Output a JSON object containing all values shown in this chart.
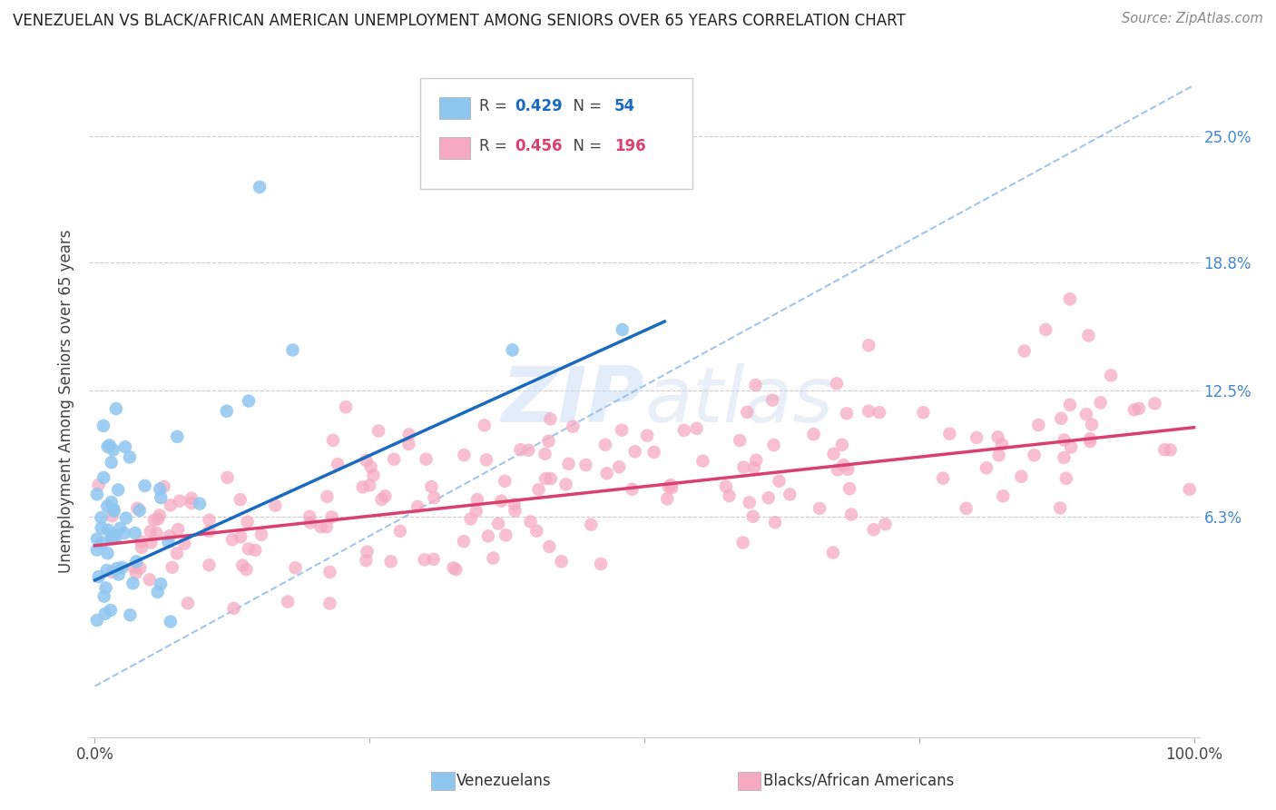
{
  "title": "VENEZUELAN VS BLACK/AFRICAN AMERICAN UNEMPLOYMENT AMONG SENIORS OVER 65 YEARS CORRELATION CHART",
  "source": "Source: ZipAtlas.com",
  "ylabel": "Unemployment Among Seniors over 65 years",
  "legend_label1": "Venezuelans",
  "legend_label2": "Blacks/African Americans",
  "watermark": "ZIPatlas",
  "venezuelan_color": "#8ec6f0",
  "black_color": "#f5aac0",
  "venezuelan_line_color": "#1a6bbf",
  "black_line_color": "#d94070",
  "dashed_line_color": "#90bce8",
  "background_color": "#ffffff",
  "R_venezuelan": 0.429,
  "N_venezuelan": 54,
  "R_black": 0.456,
  "N_black": 196,
  "ytick_values": [
    0.063,
    0.125,
    0.188,
    0.25
  ],
  "ytick_labels": [
    "6.3%",
    "12.5%",
    "18.8%",
    "25.0%"
  ],
  "ymin": -0.045,
  "ymax": 0.285,
  "xmin": -0.005,
  "xmax": 1.005,
  "legend_R1_color": "#1a6bbf",
  "legend_R2_color": "#d94070"
}
